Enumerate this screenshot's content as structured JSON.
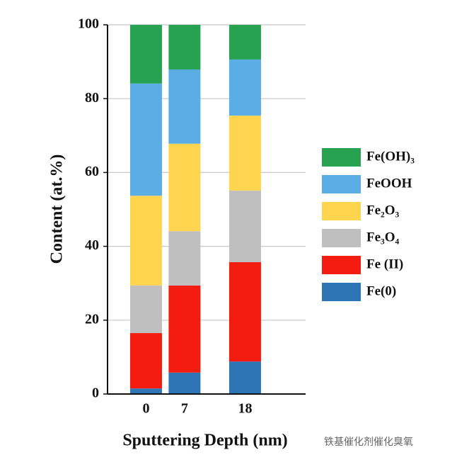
{
  "chart_data": {
    "type": "stacked_bar",
    "x_label": "Sputtering Depth (nm)",
    "y_label": "Content (at.%)",
    "watermark": "铁基催化剂催化臭氧",
    "x": [
      0,
      7,
      18
    ],
    "xlim": [
      -7,
      29
    ],
    "xticks": [
      0,
      7,
      18
    ],
    "ylim": [
      0,
      100
    ],
    "yticks": [
      0,
      20,
      40,
      60,
      80,
      100
    ],
    "grid": true,
    "legend": "right",
    "series": [
      {
        "name": "Fe(0)",
        "color": "#2e75b6",
        "values": [
          1.5,
          5.8,
          8.8
        ]
      },
      {
        "name": "Fe (II)",
        "color": "#f41c10",
        "values": [
          15.0,
          23.6,
          26.9
        ]
      },
      {
        "name": "Fe₃O₄",
        "color": "#bfbfbf",
        "values": [
          12.9,
          14.7,
          19.4
        ]
      },
      {
        "name": "Fe₂O₃",
        "color": "#ffd54f",
        "values": [
          24.3,
          23.7,
          20.3
        ]
      },
      {
        "name": "FeOOH",
        "color": "#5aade5",
        "values": [
          30.4,
          20.1,
          15.2
        ]
      },
      {
        "name": "Fe(OH)₃",
        "color": "#27a250",
        "values": [
          15.9,
          12.1,
          9.4
        ]
      }
    ]
  }
}
